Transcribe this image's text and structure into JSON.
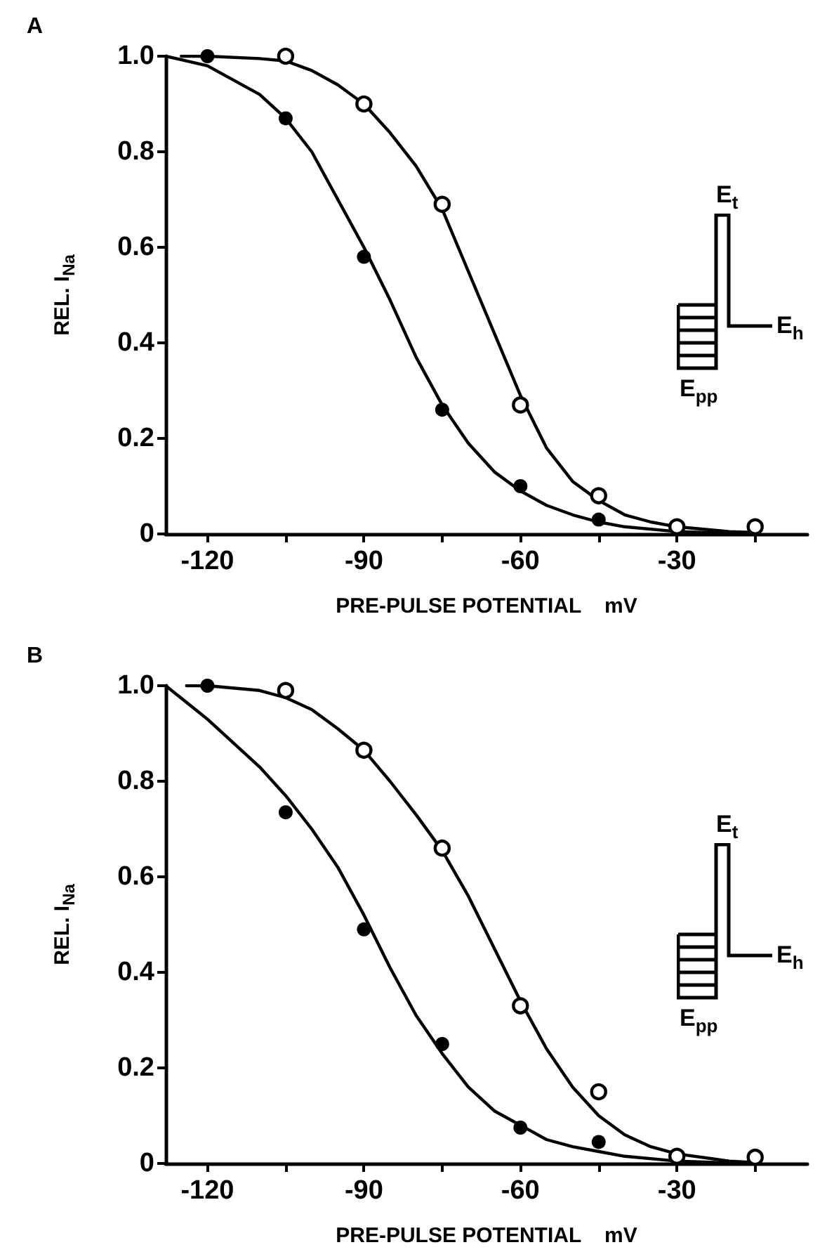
{
  "chart_data": [
    {
      "type": "scatter",
      "title": "A",
      "xlabel": "PRE-PULSE POTENTIAL    mV",
      "ylabel": "REL. I$_{Na}$",
      "x": [
        -120,
        -105,
        -90,
        -75,
        -60,
        -45,
        -30,
        -15
      ],
      "series": [
        {
          "color": "#000000",
          "marker": "circle",
          "values": [
            null,
            1.0,
            0.9,
            0.69,
            0.27,
            0.08,
            0.015,
            0.015
          ]
        },
        {
          "color": "#000000",
          "marker": "circle",
          "values": [
            1.0,
            0.87,
            0.58,
            0.26,
            0.1,
            0.03,
            null,
            null
          ]
        },
        {
          "type": "line",
          "color": "#000000",
          "marker": "none",
          "x": [
            -125,
            -120,
            -110,
            -105,
            -100,
            -95,
            -90,
            -85,
            -80,
            -75,
            -70,
            -65,
            -60,
            -55,
            -50,
            -45,
            -40,
            -35,
            -30,
            -20,
            -15
          ],
          "values": [
            1.0,
            1.0,
            0.995,
            0.99,
            0.97,
            0.94,
            0.9,
            0.84,
            0.77,
            0.68,
            0.55,
            0.42,
            0.29,
            0.18,
            0.11,
            0.07,
            0.04,
            0.025,
            0.015,
            0.005,
            0.003
          ]
        },
        {
          "type": "line",
          "color": "#000000",
          "marker": "none",
          "x": [
            -128,
            -120,
            -110,
            -105,
            -100,
            -95,
            -90,
            -85,
            -80,
            -75,
            -70,
            -65,
            -60,
            -55,
            -50,
            -45,
            -40,
            -30,
            -20
          ],
          "values": [
            1.0,
            0.98,
            0.92,
            0.87,
            0.8,
            0.7,
            0.6,
            0.49,
            0.37,
            0.27,
            0.19,
            0.13,
            0.09,
            0.06,
            0.04,
            0.025,
            0.015,
            0.005,
            0.002
          ]
        }
      ],
      "xlim": [
        -128,
        -5
      ],
      "xticks": [
        -120,
        {
          "value": -105,
          "label": null
        },
        -90,
        {
          "value": -75,
          "label": null
        },
        -60,
        {
          "value": -45,
          "label": null
        },
        -30,
        {
          "value": -15,
          "label": null
        }
      ],
      "ylim": [
        0,
        1
      ],
      "yticks": [
        0,
        0.2,
        0.4,
        0.6,
        0.8,
        {
          "value": 1,
          "label": "1.0"
        }
      ],
      "grid": false,
      "annotations": [
        "E$_{t}$",
        "E$_{h}$",
        "E$_{pp}$"
      ]
    },
    {
      "type": "scatter",
      "title": "B",
      "xlabel": "PRE-PULSE POTENTIAL    mV",
      "ylabel": "REL. I$_{Na}$",
      "x": [
        -120,
        -105,
        -90,
        -75,
        -60,
        -45,
        -30,
        -15
      ],
      "series": [
        {
          "color": "#000000",
          "marker": "circle",
          "values": [
            null,
            0.99,
            0.865,
            0.66,
            0.33,
            0.15,
            0.015,
            0.013
          ]
        },
        {
          "color": "#000000",
          "marker": "circle",
          "values": [
            1.0,
            0.735,
            0.49,
            0.25,
            0.075,
            0.045,
            null,
            null
          ]
        },
        {
          "type": "line",
          "color": "#000000",
          "marker": "none",
          "x": [
            -124,
            -120,
            -110,
            -105,
            -100,
            -95,
            -90,
            -85,
            -80,
            -75,
            -70,
            -65,
            -60,
            -55,
            -50,
            -45,
            -40,
            -35,
            -30,
            -20,
            -15
          ],
          "values": [
            1.0,
            1.0,
            0.99,
            0.975,
            0.95,
            0.91,
            0.865,
            0.8,
            0.73,
            0.655,
            0.56,
            0.45,
            0.34,
            0.24,
            0.16,
            0.1,
            0.06,
            0.035,
            0.02,
            0.005,
            0.002
          ]
        },
        {
          "type": "line",
          "color": "#000000",
          "marker": "none",
          "x": [
            -128,
            -120,
            -110,
            -105,
            -100,
            -95,
            -90,
            -85,
            -80,
            -75,
            -70,
            -65,
            -60,
            -55,
            -50,
            -45,
            -40,
            -30,
            -20
          ],
          "values": [
            1.0,
            0.93,
            0.83,
            0.77,
            0.7,
            0.62,
            0.52,
            0.41,
            0.31,
            0.23,
            0.16,
            0.11,
            0.08,
            0.05,
            0.035,
            0.025,
            0.015,
            0.005,
            0.001
          ]
        }
      ],
      "xlim": [
        -128,
        -5
      ],
      "xticks": [
        -120,
        {
          "value": -105,
          "label": null
        },
        -90,
        {
          "value": -75,
          "label": null
        },
        -60,
        {
          "value": -45,
          "label": null
        },
        -30,
        {
          "value": -15,
          "label": null
        }
      ],
      "ylim": [
        0,
        1
      ],
      "yticks": [
        0,
        0.2,
        0.4,
        0.6,
        0.8,
        {
          "value": 1,
          "label": "1.0"
        }
      ],
      "grid": false,
      "annotations": [
        "E$_{t}$",
        "E$_{h}$",
        "E$_{pp}$"
      ]
    }
  ]
}
